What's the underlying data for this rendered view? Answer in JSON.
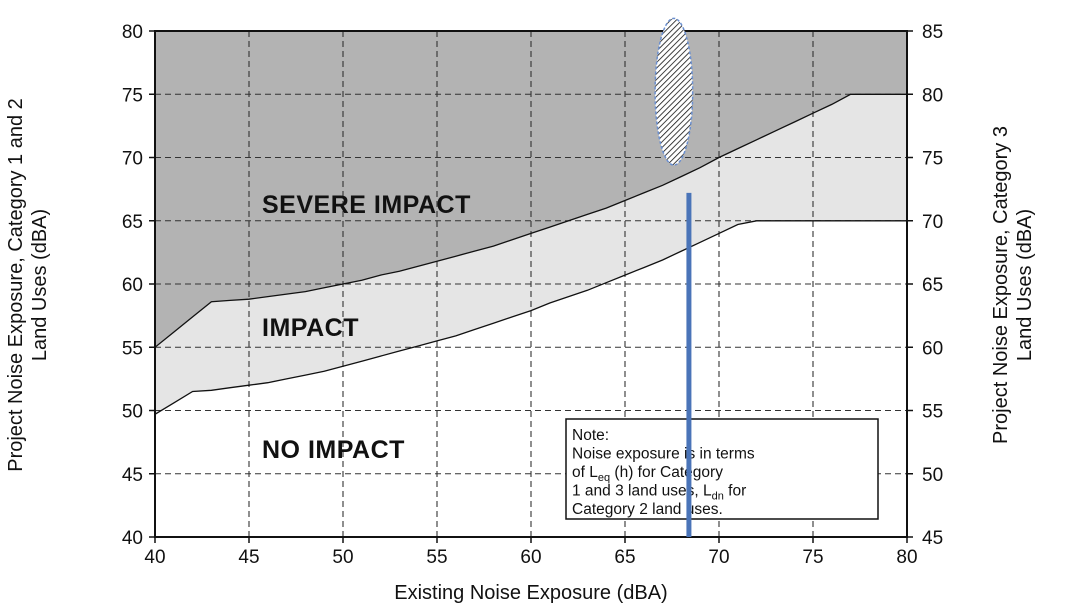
{
  "chart_data": {
    "type": "area",
    "xlabel": "Existing Noise Exposure (dBA)",
    "ylabel_left": [
      "Project Noise Exposure, Category 1 and 2",
      "Land Uses (dBA)"
    ],
    "ylabel_right": [
      "Project Noise Exposure, Category 3",
      "Land Uses (dBA)"
    ],
    "xlim": [
      40,
      80
    ],
    "ylim_left": [
      40,
      80
    ],
    "ylim_right": [
      45,
      85
    ],
    "x_ticks": [
      40,
      45,
      50,
      55,
      60,
      65,
      70,
      75,
      80
    ],
    "y_ticks_left": [
      40,
      45,
      50,
      55,
      60,
      65,
      70,
      75,
      80
    ],
    "y_ticks_right": [
      45,
      50,
      55,
      60,
      65,
      70,
      75,
      80,
      85
    ],
    "grid": true,
    "series": [
      {
        "x": [
          40,
          41,
          42,
          43,
          44,
          45,
          46,
          47,
          48,
          49,
          50,
          51,
          52,
          53,
          54,
          55,
          56,
          57,
          58,
          59,
          60,
          61,
          62,
          63,
          64,
          65,
          66,
          67,
          68,
          69,
          70,
          71,
          72,
          73,
          74,
          75,
          76,
          77,
          78,
          79,
          80
        ],
        "y": [
          55.0,
          56.2,
          57.4,
          58.6,
          58.7,
          58.8,
          59.0,
          59.2,
          59.4,
          59.7,
          60.0,
          60.3,
          60.7,
          61.0,
          61.4,
          61.8,
          62.2,
          62.6,
          63.0,
          63.5,
          64.0,
          64.5,
          65.0,
          65.5,
          66.0,
          66.6,
          67.2,
          67.8,
          68.5,
          69.2,
          70.0,
          70.7,
          71.4,
          72.1,
          72.8,
          73.5,
          74.2,
          75.0,
          75.0,
          75.0,
          75.0
        ]
      },
      {
        "x": [
          40,
          41,
          42,
          43,
          44,
          45,
          46,
          47,
          48,
          49,
          50,
          51,
          52,
          53,
          54,
          55,
          56,
          57,
          58,
          59,
          60,
          61,
          62,
          63,
          64,
          65,
          66,
          67,
          68,
          69,
          70,
          71,
          72,
          73,
          74,
          75,
          76,
          77,
          78,
          79,
          80
        ],
        "y": [
          49.7,
          50.6,
          51.5,
          51.6,
          51.8,
          52.0,
          52.2,
          52.5,
          52.8,
          53.1,
          53.5,
          53.9,
          54.3,
          54.7,
          55.1,
          55.5,
          55.9,
          56.4,
          56.9,
          57.4,
          57.9,
          58.5,
          59.0,
          59.5,
          60.1,
          60.7,
          61.3,
          61.9,
          62.6,
          63.3,
          64.0,
          64.7,
          65.0,
          65.0,
          65.0,
          65.0,
          65.0,
          65.0,
          65.0,
          65.0,
          65.0
        ]
      }
    ],
    "marker": {
      "x": 68.4,
      "y_from": 40,
      "y_to": 67.2,
      "color": "#4a74b8"
    },
    "ellipse": {
      "cx": 67.6,
      "cy": 75.2,
      "rx": 1.0,
      "ry": 5.8
    },
    "regions": {
      "severe": "SEVERE IMPACT",
      "impact": "IMPACT",
      "none": "NO IMPACT"
    },
    "note_lines": [
      [
        {
          "t": "Note:"
        }
      ],
      [
        {
          "t": "Noise exposure is in terms"
        }
      ],
      [
        {
          "t": "of L"
        },
        {
          "t": "eq",
          "sub": true
        },
        {
          "t": " (h) for Category"
        }
      ],
      [
        {
          "t": "1 and 3 land uses, L"
        },
        {
          "t": "dn",
          "sub": true
        },
        {
          "t": "  for"
        }
      ],
      [
        {
          "t": "Category 2 land uses."
        }
      ]
    ],
    "colors": {
      "severe_fill": "#b3b3b3",
      "impact_fill": "#e5e5e5",
      "none_fill": "#ffffff",
      "line": "#111111",
      "grid": "#333333"
    }
  }
}
